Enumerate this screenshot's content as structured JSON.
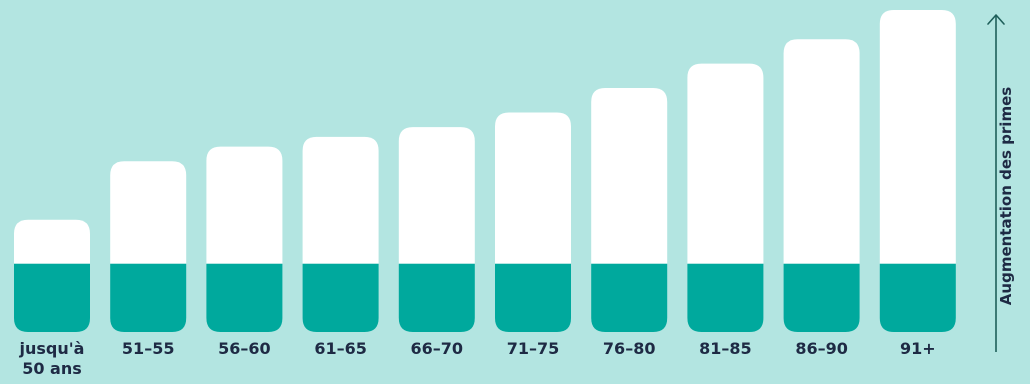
{
  "chart_data": {
    "type": "bar",
    "categories": [
      "jusqu'à\n50 ans",
      "51–55",
      "56–60",
      "61–65",
      "66–70",
      "71–75",
      "76–80",
      "81–85",
      "86–90",
      "91+"
    ],
    "values": [
      23,
      35,
      38,
      40,
      42,
      45,
      50,
      55,
      60,
      66
    ],
    "base_value": 14,
    "ylabel": "Augmentation des primes",
    "ylim": [
      0,
      66
    ],
    "grid": false,
    "legend": "none",
    "colors": {
      "background": "#b3e5e1",
      "bar": "#ffffff",
      "base": "#00a99d",
      "text": "#1e2a44",
      "axis": "#1e5f5a"
    }
  }
}
